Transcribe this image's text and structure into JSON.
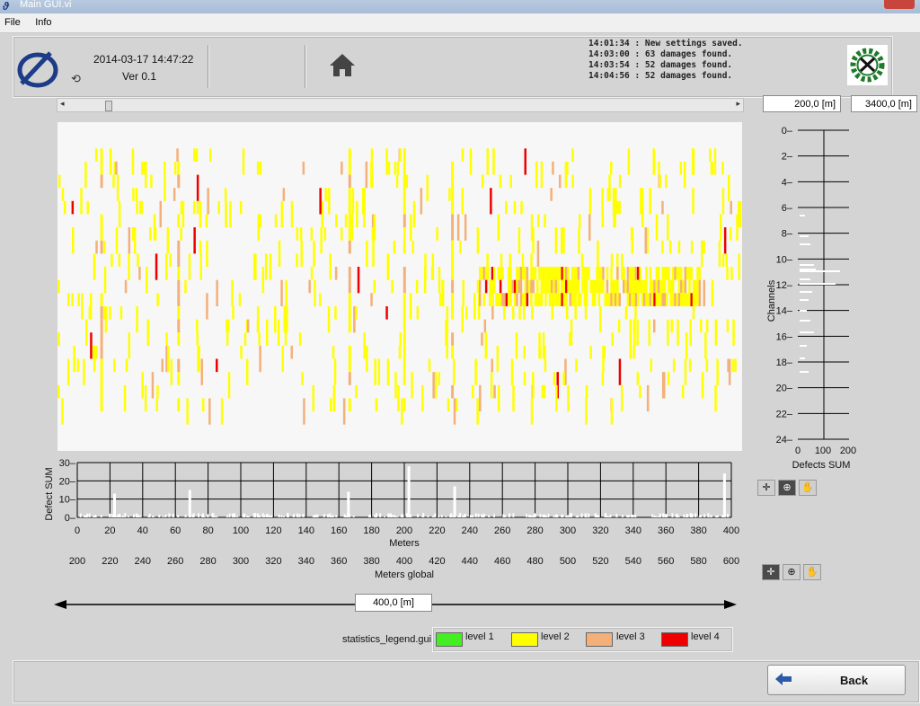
{
  "window": {
    "title": "Main GUI.vi"
  },
  "menu": {
    "items": [
      "File",
      "Info"
    ]
  },
  "header": {
    "timestamp": "2014-03-17 14:47:22",
    "version": "Ver 0.1",
    "log_lines": [
      "14:01:34 : New settings saved.",
      "14:03:00 : 63 damages found.",
      "14:03:54 : 52 damages found.",
      "14:04:56 : 52 damages found."
    ]
  },
  "range": {
    "start": "200,0 [m]",
    "end": "3400,0 [m]"
  },
  "span": {
    "value": "400,0 [m]"
  },
  "channels_plot": {
    "ylabel": "Channels",
    "xlabel": "Defects SUM",
    "yticks": [
      "0",
      "2",
      "4",
      "6",
      "8",
      "10",
      "12",
      "14",
      "16",
      "18",
      "20",
      "22",
      "24"
    ],
    "xticks": [
      "0",
      "100",
      "200"
    ]
  },
  "sum_plot": {
    "ylabel": "Defect SUM",
    "yticks": [
      "30",
      "20",
      "10",
      "0"
    ],
    "xlabel": "Meters",
    "xticks": [
      "0",
      "20",
      "40",
      "60",
      "80",
      "100",
      "120",
      "140",
      "160",
      "180",
      "200",
      "220",
      "240",
      "260",
      "280",
      "300",
      "320",
      "340",
      "360",
      "380",
      "400"
    ],
    "x2label": "Meters global",
    "x2ticks": [
      "200",
      "220",
      "240",
      "260",
      "280",
      "300",
      "320",
      "340",
      "360",
      "380",
      "400",
      "420",
      "440",
      "460",
      "480",
      "500",
      "520",
      "540",
      "560",
      "580",
      "600"
    ]
  },
  "chart_data": {
    "type": "heatmap",
    "xlabel": "Meters",
    "ylabel": "Channels",
    "xlim": [
      0,
      400
    ],
    "ylim": [
      0,
      24
    ],
    "levels": [
      {
        "name": "level 1",
        "color": "#44ee22"
      },
      {
        "name": "level 2",
        "color": "#ffff00"
      },
      {
        "name": "level 3",
        "color": "#f4b07a"
      },
      {
        "name": "level 4",
        "color": "#ee0000"
      }
    ],
    "notable_columns_m": [
      25,
      70,
      170,
      202,
      230,
      400
    ],
    "dense_band": {
      "channels": [
        11,
        13
      ],
      "meters": [
        245,
        375
      ]
    }
  },
  "legend": {
    "label": "statistics_legend.gui",
    "items": [
      {
        "label": "level 1",
        "color": "#44ee22"
      },
      {
        "label": "level 2",
        "color": "#ffff00"
      },
      {
        "label": "level 3",
        "color": "#f4b07a"
      },
      {
        "label": "level 4",
        "color": "#ee0000"
      }
    ]
  },
  "footer": {
    "back_label": "Back"
  },
  "colors": {
    "accent": "#2a5aa8",
    "grid": "#000000"
  }
}
